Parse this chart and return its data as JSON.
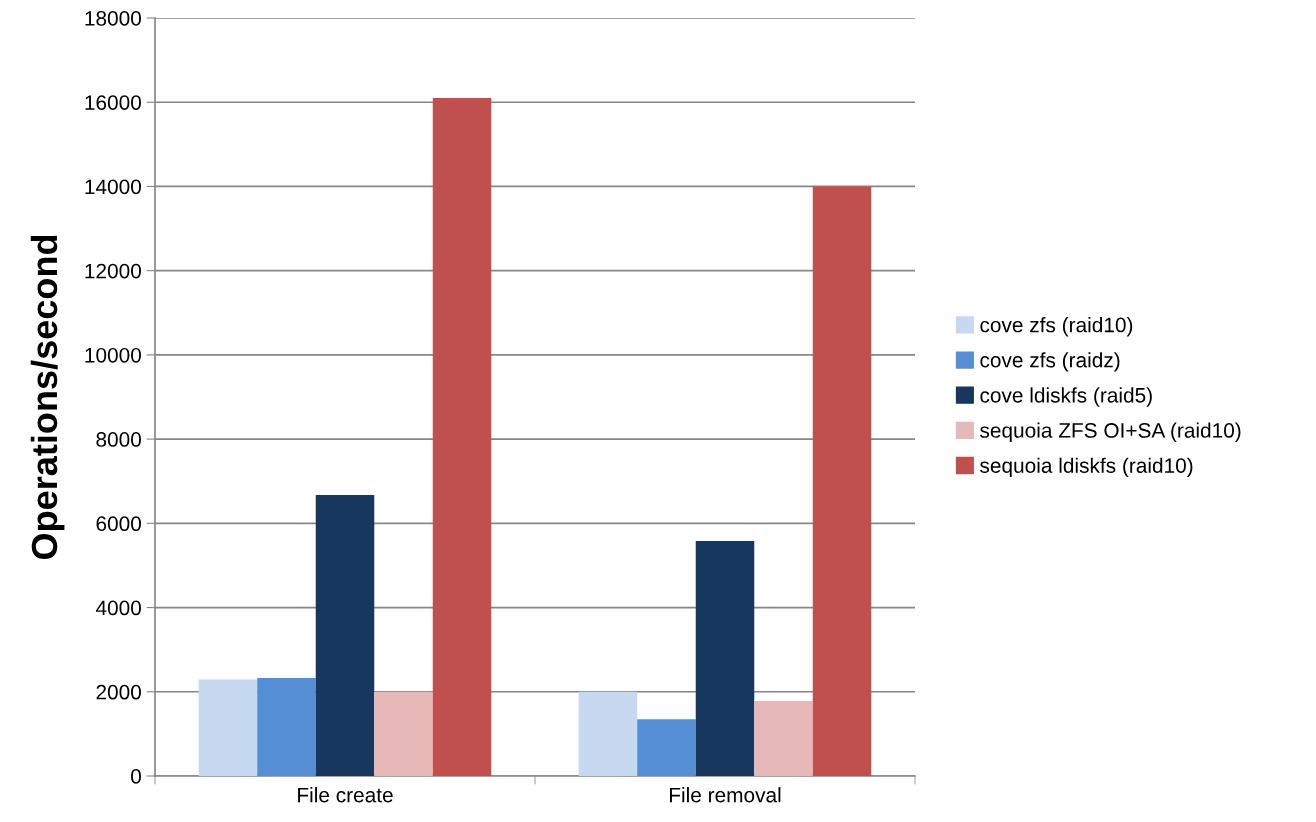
{
  "chart_data": {
    "type": "bar",
    "ylabel": "Operations/second",
    "categories": [
      "File create",
      "File removal"
    ],
    "series": [
      {
        "name": "cove zfs (raid10)",
        "color": "#c6d9f1",
        "values": [
          2290,
          2000
        ]
      },
      {
        "name": "cove zfs (raidz)",
        "color": "#558ed5",
        "values": [
          2330,
          1350
        ]
      },
      {
        "name": "cove ldiskfs (raid5)",
        "color": "#17375e",
        "values": [
          6670,
          5580
        ]
      },
      {
        "name": "sequoia ZFS OI+SA (raid10)",
        "color": "#e6b9b8",
        "values": [
          2000,
          1780
        ]
      },
      {
        "name": "sequoia ldiskfs (raid10)",
        "color": "#c0504d",
        "values": [
          16100,
          14000
        ]
      }
    ],
    "ylim": [
      0,
      18000
    ],
    "yticks": [
      0,
      2000,
      4000,
      6000,
      8000,
      10000,
      12000,
      14000,
      16000,
      18000
    ],
    "grid": "y",
    "legend": "right"
  }
}
